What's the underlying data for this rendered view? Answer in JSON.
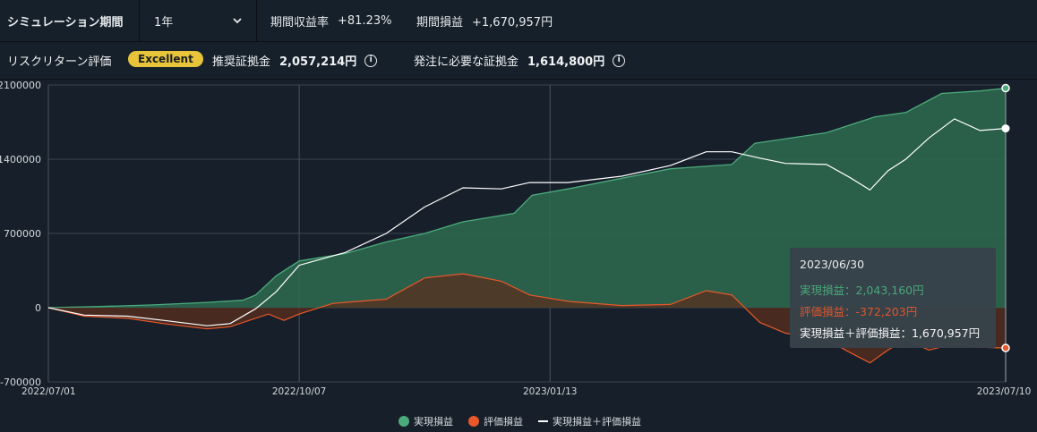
{
  "header": {
    "period_label": "シミュレーション期間",
    "period_value": "1年",
    "return_rate_label": "期間収益率",
    "return_rate_value": "+81.23%",
    "period_pl_label": "期間損益",
    "period_pl_value": "+1,670,957円",
    "risk_label": "リスクリターン評価",
    "risk_badge": "Excellent",
    "recommended_label": "推奨証拠金",
    "recommended_value": "2,057,214円",
    "required_label": "発注に必要な証拠金",
    "required_value": "1,614,800円"
  },
  "tooltip": {
    "date": "2023/06/30",
    "realized": "実現損益：2,043,160円",
    "unrealized": "評価損益：-372,203円",
    "total": "実現損益＋評価損益：1,670,957円"
  },
  "legend": {
    "realized": "実現損益",
    "unrealized": "評価損益",
    "total": "実現損益＋評価損益"
  },
  "colors": {
    "realized": "#4bab7d",
    "unrealized": "#e8582a",
    "total": "#ffffff",
    "badge": "#e8c43a"
  },
  "chart_data": {
    "type": "area",
    "x_range": [
      "2022/07/01",
      "2023/07/10"
    ],
    "x_ticks": [
      "2022/07/01",
      "2022/10/07",
      "2023/01/13",
      "2023/07/10"
    ],
    "y_ticks": [
      "2100000",
      "1400000",
      "700000",
      "0",
      "-700000"
    ],
    "ylim": [
      -700000,
      2100000
    ],
    "series": [
      {
        "name": "実現損益",
        "points": [
          [
            "2022/07/01",
            0
          ],
          [
            "2022/07/20",
            10000
          ],
          [
            "2022/08/10",
            25000
          ],
          [
            "2022/09/01",
            50000
          ],
          [
            "2022/09/15",
            70000
          ],
          [
            "2022/09/20",
            120000
          ],
          [
            "2022/09/28",
            300000
          ],
          [
            "2022/10/07",
            440000
          ],
          [
            "2022/10/25",
            510000
          ],
          [
            "2022/11/10",
            620000
          ],
          [
            "2022/11/25",
            700000
          ],
          [
            "2022/12/10",
            810000
          ],
          [
            "2022/12/30",
            890000
          ],
          [
            "2023/01/06",
            1060000
          ],
          [
            "2023/01/20",
            1120000
          ],
          [
            "2023/02/10",
            1220000
          ],
          [
            "2023/03/01",
            1310000
          ],
          [
            "2023/03/25",
            1350000
          ],
          [
            "2023/04/03",
            1550000
          ],
          [
            "2023/05/01",
            1650000
          ],
          [
            "2023/05/20",
            1800000
          ],
          [
            "2023/06/01",
            1840000
          ],
          [
            "2023/06/15",
            2020000
          ],
          [
            "2023/06/30",
            2043160
          ],
          [
            "2023/07/10",
            2070000
          ]
        ]
      },
      {
        "name": "評価損益",
        "points": [
          [
            "2022/07/01",
            0
          ],
          [
            "2022/07/15",
            -80000
          ],
          [
            "2022/08/01",
            -100000
          ],
          [
            "2022/08/15",
            -150000
          ],
          [
            "2022/09/01",
            -200000
          ],
          [
            "2022/09/10",
            -180000
          ],
          [
            "2022/09/25",
            -60000
          ],
          [
            "2022/10/01",
            -120000
          ],
          [
            "2022/10/07",
            -60000
          ],
          [
            "2022/10/20",
            40000
          ],
          [
            "2022/11/10",
            80000
          ],
          [
            "2022/11/25",
            280000
          ],
          [
            "2022/12/10",
            320000
          ],
          [
            "2022/12/25",
            250000
          ],
          [
            "2023/01/05",
            120000
          ],
          [
            "2023/01/20",
            60000
          ],
          [
            "2023/02/10",
            20000
          ],
          [
            "2023/03/01",
            30000
          ],
          [
            "2023/03/15",
            160000
          ],
          [
            "2023/03/25",
            120000
          ],
          [
            "2023/04/05",
            -140000
          ],
          [
            "2023/04/15",
            -240000
          ],
          [
            "2023/05/01",
            -300000
          ],
          [
            "2023/05/10",
            -420000
          ],
          [
            "2023/05/18",
            -520000
          ],
          [
            "2023/05/25",
            -400000
          ],
          [
            "2023/06/01",
            -300000
          ],
          [
            "2023/06/10",
            -400000
          ],
          [
            "2023/06/20",
            -340000
          ],
          [
            "2023/06/30",
            -372203
          ],
          [
            "2023/07/10",
            -380000
          ]
        ]
      },
      {
        "name": "実現損益＋評価損益",
        "points": [
          [
            "2022/07/01",
            0
          ],
          [
            "2022/07/15",
            -70000
          ],
          [
            "2022/08/01",
            -80000
          ],
          [
            "2022/08/15",
            -120000
          ],
          [
            "2022/09/01",
            -170000
          ],
          [
            "2022/09/10",
            -150000
          ],
          [
            "2022/09/20",
            -10000
          ],
          [
            "2022/09/28",
            150000
          ],
          [
            "2022/10/07",
            400000
          ],
          [
            "2022/10/25",
            520000
          ],
          [
            "2022/11/10",
            700000
          ],
          [
            "2022/11/25",
            950000
          ],
          [
            "2022/12/10",
            1130000
          ],
          [
            "2022/12/25",
            1120000
          ],
          [
            "2023/01/05",
            1180000
          ],
          [
            "2023/01/20",
            1180000
          ],
          [
            "2023/02/10",
            1240000
          ],
          [
            "2023/03/01",
            1340000
          ],
          [
            "2023/03/15",
            1470000
          ],
          [
            "2023/03/25",
            1470000
          ],
          [
            "2023/04/05",
            1410000
          ],
          [
            "2023/04/15",
            1360000
          ],
          [
            "2023/05/01",
            1350000
          ],
          [
            "2023/05/10",
            1230000
          ],
          [
            "2023/05/18",
            1110000
          ],
          [
            "2023/05/25",
            1290000
          ],
          [
            "2023/06/01",
            1400000
          ],
          [
            "2023/06/10",
            1600000
          ],
          [
            "2023/06/20",
            1780000
          ],
          [
            "2023/06/30",
            1670957
          ],
          [
            "2023/07/10",
            1690000
          ]
        ]
      }
    ]
  }
}
